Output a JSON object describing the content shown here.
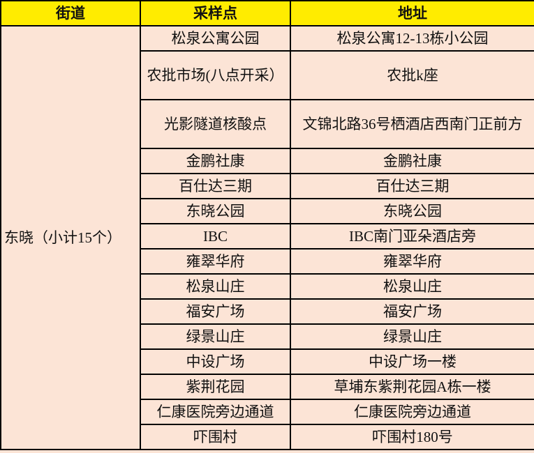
{
  "headers": [
    "街道",
    "采样点",
    "地址"
  ],
  "street": "东晓（小计15个）",
  "rows": [
    {
      "site": "松泉公寓公园",
      "address": "松泉公寓12-13栋小公园"
    },
    {
      "site": "农批市场(八点开采）",
      "address": "农批k座"
    },
    {
      "site": "光影隧道核酸点",
      "address": "文锦北路36号栖酒店西南门正前方"
    },
    {
      "site": "金鹏社康",
      "address": "金鹏社康"
    },
    {
      "site": "百仕达三期",
      "address": "百仕达三期"
    },
    {
      "site": "东晓公园",
      "address": "东晓公园"
    },
    {
      "site": "IBC",
      "address": "IBC南门亚朵酒店旁"
    },
    {
      "site": "雍翠华府",
      "address": "雍翠华府"
    },
    {
      "site": "松泉山庄",
      "address": "松泉山庄"
    },
    {
      "site": "福安广场",
      "address": "福安广场"
    },
    {
      "site": "绿景山庄",
      "address": "绿景山庄"
    },
    {
      "site": "中设广场",
      "address": "中设广场一楼"
    },
    {
      "site": "紫荆花园",
      "address": "草埔东紫荆花园A栋一楼"
    },
    {
      "site": "仁康医院旁边通道",
      "address": "仁康医院旁边通道"
    },
    {
      "site": "吓围村",
      "address": "吓围村180号"
    }
  ],
  "colors": {
    "header": "#ffec00",
    "body": "#fce4d6"
  }
}
